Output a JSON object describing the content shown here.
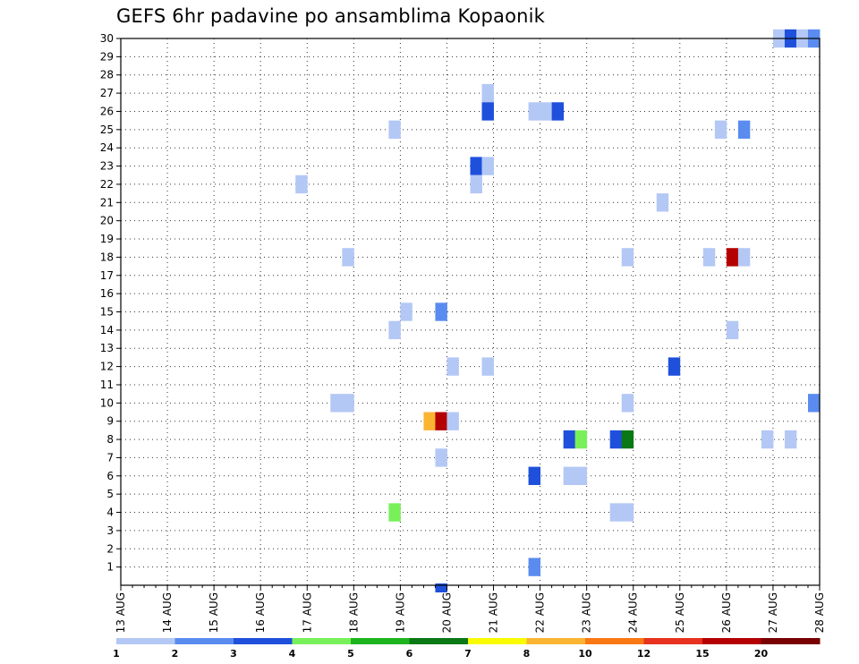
{
  "chart_data": {
    "type": "heatmap",
    "title": "GEFS 6hr padavine po ansamblima Kopaonik",
    "x_tick_labels": [
      "13 AUG",
      "14 AUG",
      "15 AUG",
      "16 AUG",
      "17 AUG",
      "18 AUG",
      "19 AUG",
      "20 AUG",
      "21 AUG",
      "22 AUG",
      "23 AUG",
      "24 AUG",
      "25 AUG",
      "26 AUG",
      "27 AUG",
      "28 AUG"
    ],
    "y_tick_labels": [
      "1",
      "2",
      "3",
      "4",
      "5",
      "6",
      "7",
      "8",
      "9",
      "10",
      "11",
      "12",
      "13",
      "14",
      "15",
      "16",
      "17",
      "18",
      "19",
      "20",
      "21",
      "22",
      "23",
      "24",
      "25",
      "26",
      "27",
      "28",
      "29",
      "30"
    ],
    "xlim": [
      0,
      15
    ],
    "ylim": [
      0,
      30
    ],
    "grid": true,
    "legend": {
      "placement": "bottom",
      "labels": [
        "1",
        "2",
        "3",
        "4",
        "5",
        "6",
        "7",
        "8",
        "10",
        "12",
        "15",
        "20"
      ],
      "colors": [
        "#b4c8f5",
        "#5a8cf0",
        "#1e50dc",
        "#78f05a",
        "#1eb41e",
        "#0a7814",
        "#fafa00",
        "#fab432",
        "#fa7814",
        "#e6321e",
        "#b40000",
        "#780000"
      ]
    },
    "cells": [
      {
        "x": 14.0,
        "y": 30,
        "v": 1
      },
      {
        "x": 14.25,
        "y": 30,
        "v": 3
      },
      {
        "x": 14.5,
        "y": 30,
        "v": 1
      },
      {
        "x": 14.75,
        "y": 30,
        "v": 2
      },
      {
        "x": 7.75,
        "y": 27,
        "v": 1
      },
      {
        "x": 7.75,
        "y": 26,
        "v": 3
      },
      {
        "x": 8.75,
        "y": 26,
        "v": 1
      },
      {
        "x": 9.0,
        "y": 26,
        "v": 1
      },
      {
        "x": 9.25,
        "y": 26,
        "v": 3
      },
      {
        "x": 5.75,
        "y": 25,
        "v": 1
      },
      {
        "x": 12.75,
        "y": 25,
        "v": 1
      },
      {
        "x": 13.25,
        "y": 25,
        "v": 2
      },
      {
        "x": 7.5,
        "y": 23,
        "v": 3
      },
      {
        "x": 7.75,
        "y": 23,
        "v": 1
      },
      {
        "x": 3.75,
        "y": 22,
        "v": 1
      },
      {
        "x": 7.5,
        "y": 22,
        "v": 1
      },
      {
        "x": 11.5,
        "y": 21,
        "v": 1
      },
      {
        "x": 4.75,
        "y": 18,
        "v": 1
      },
      {
        "x": 10.75,
        "y": 18,
        "v": 1
      },
      {
        "x": 12.5,
        "y": 18,
        "v": 1
      },
      {
        "x": 13.0,
        "y": 18,
        "v": 15
      },
      {
        "x": 13.25,
        "y": 18,
        "v": 1
      },
      {
        "x": 6.0,
        "y": 15,
        "v": 1
      },
      {
        "x": 6.75,
        "y": 15,
        "v": 2
      },
      {
        "x": 5.75,
        "y": 14,
        "v": 1
      },
      {
        "x": 13.0,
        "y": 14,
        "v": 1
      },
      {
        "x": 7.0,
        "y": 12,
        "v": 1
      },
      {
        "x": 7.75,
        "y": 12,
        "v": 1
      },
      {
        "x": 11.75,
        "y": 12,
        "v": 3
      },
      {
        "x": 4.5,
        "y": 10,
        "v": 1
      },
      {
        "x": 4.75,
        "y": 10,
        "v": 1
      },
      {
        "x": 10.75,
        "y": 10,
        "v": 1
      },
      {
        "x": 14.75,
        "y": 10,
        "v": 2
      },
      {
        "x": 6.5,
        "y": 9,
        "v": 8
      },
      {
        "x": 6.75,
        "y": 9,
        "v": 15
      },
      {
        "x": 7.0,
        "y": 9,
        "v": 1
      },
      {
        "x": 9.5,
        "y": 8,
        "v": 3
      },
      {
        "x": 9.75,
        "y": 8,
        "v": 4
      },
      {
        "x": 10.5,
        "y": 8,
        "v": 3
      },
      {
        "x": 10.75,
        "y": 8,
        "v": 6
      },
      {
        "x": 13.75,
        "y": 8,
        "v": 1
      },
      {
        "x": 14.25,
        "y": 8,
        "v": 1
      },
      {
        "x": 6.75,
        "y": 7,
        "v": 1
      },
      {
        "x": 8.75,
        "y": 6,
        "v": 3
      },
      {
        "x": 9.5,
        "y": 6,
        "v": 1
      },
      {
        "x": 9.75,
        "y": 6,
        "v": 1
      },
      {
        "x": 5.75,
        "y": 4,
        "v": 4
      },
      {
        "x": 10.5,
        "y": 4,
        "v": 1
      },
      {
        "x": 10.75,
        "y": 4,
        "v": 1
      },
      {
        "x": 8.75,
        "y": 1,
        "v": 2
      },
      {
        "x": 6.75,
        "y": 0,
        "v": 3
      }
    ]
  }
}
